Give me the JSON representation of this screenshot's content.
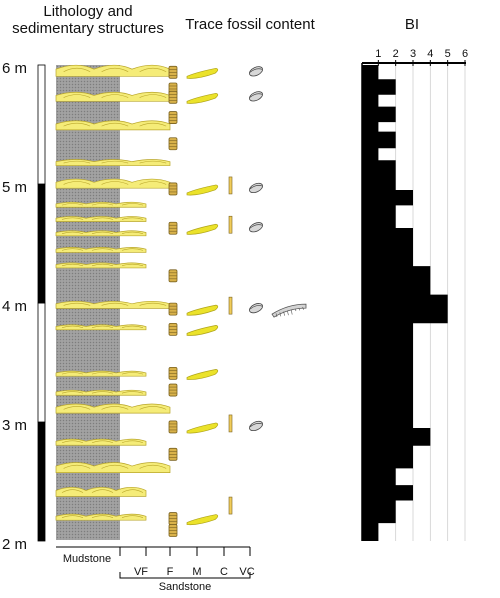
{
  "headers": {
    "lithology": [
      "Lithology and",
      "sedimentary structures"
    ],
    "trace": "Trace fossil content",
    "bi": "BI"
  },
  "depth": {
    "unit": "m",
    "labels": [
      "6 m",
      "5 m",
      "4 m",
      "3 m",
      "2 m"
    ],
    "range": [
      2,
      6
    ],
    "scale_bar": [
      {
        "from": 2,
        "to": 3,
        "fill": "black"
      },
      {
        "from": 3,
        "to": 4,
        "fill": "white"
      },
      {
        "from": 4,
        "to": 5,
        "fill": "black"
      },
      {
        "from": 5,
        "to": 6,
        "fill": "white"
      }
    ]
  },
  "grain_size": {
    "mudstone": "Mudstone",
    "classes": [
      "VF",
      "F",
      "M",
      "C",
      "VC"
    ],
    "sandstone": "Sandstone"
  },
  "sand_beds": [
    {
      "depth": 5.93,
      "grain": "F",
      "thick": 0.11
    },
    {
      "depth": 5.72,
      "grain": "F",
      "thick": 0.09
    },
    {
      "depth": 5.48,
      "grain": "F",
      "thick": 0.09
    },
    {
      "depth": 5.18,
      "grain": "F",
      "thick": 0.06
    },
    {
      "depth": 4.99,
      "grain": "F",
      "thick": 0.09
    },
    {
      "depth": 4.83,
      "grain": "VF",
      "thick": 0.05
    },
    {
      "depth": 4.71,
      "grain": "VF",
      "thick": 0.05
    },
    {
      "depth": 4.59,
      "grain": "VF",
      "thick": 0.05
    },
    {
      "depth": 4.45,
      "grain": "VF",
      "thick": 0.05
    },
    {
      "depth": 4.32,
      "grain": "VF",
      "thick": 0.05
    },
    {
      "depth": 3.98,
      "grain": "F",
      "thick": 0.07
    },
    {
      "depth": 3.8,
      "grain": "VF",
      "thick": 0.05
    },
    {
      "depth": 3.41,
      "grain": "VF",
      "thick": 0.05
    },
    {
      "depth": 3.25,
      "grain": "VF",
      "thick": 0.05
    },
    {
      "depth": 3.1,
      "grain": "F",
      "thick": 0.09
    },
    {
      "depth": 2.83,
      "grain": "VF",
      "thick": 0.06
    },
    {
      "depth": 2.6,
      "grain": "F",
      "thick": 0.1
    },
    {
      "depth": 2.4,
      "grain": "VF",
      "thick": 0.09
    },
    {
      "depth": 2.2,
      "grain": "VF",
      "thick": 0.06
    }
  ],
  "trace_fossils": [
    {
      "depth": 5.93,
      "types": [
        "vertical-burrow",
        "horizontal-burrow",
        "trail"
      ]
    },
    {
      "depth": 5.79,
      "types": [
        "vertical-burrow"
      ]
    },
    {
      "depth": 5.72,
      "types": [
        "vertical-burrow",
        "horizontal-burrow",
        "trail"
      ]
    },
    {
      "depth": 5.55,
      "types": [
        "vertical-burrow"
      ]
    },
    {
      "depth": 5.33,
      "types": [
        "vertical-burrow"
      ]
    },
    {
      "depth": 4.95,
      "types": [
        "vertical-burrow",
        "horizontal-burrow",
        "shaft",
        "trail"
      ]
    },
    {
      "depth": 4.62,
      "types": [
        "vertical-burrow",
        "horizontal-burrow",
        "shaft",
        "trail"
      ]
    },
    {
      "depth": 4.22,
      "types": [
        "vertical-burrow"
      ]
    },
    {
      "depth": 3.94,
      "types": [
        "vertical-burrow",
        "horizontal-burrow",
        "shaft",
        "trail",
        "segmented-burrow"
      ]
    },
    {
      "depth": 3.77,
      "types": [
        "vertical-burrow",
        "horizontal-burrow"
      ]
    },
    {
      "depth": 3.4,
      "types": [
        "vertical-burrow",
        "horizontal-burrow"
      ]
    },
    {
      "depth": 3.26,
      "types": [
        "vertical-burrow"
      ]
    },
    {
      "depth": 2.95,
      "types": [
        "vertical-burrow",
        "horizontal-burrow",
        "shaft",
        "trail"
      ]
    },
    {
      "depth": 2.72,
      "types": [
        "vertical-burrow"
      ]
    },
    {
      "depth": 2.26,
      "types": [
        "shaft"
      ]
    },
    {
      "depth": 2.18,
      "types": [
        "vertical-burrow",
        "horizontal-burrow"
      ]
    },
    {
      "depth": 2.08,
      "types": [
        "vertical-burrow"
      ]
    }
  ],
  "chart_data": {
    "type": "area",
    "orientation": "vertical-profile",
    "xlabel": "BI",
    "x_ticks": [
      "1",
      "2",
      "3",
      "4",
      "5",
      "6"
    ],
    "xlim": [
      0,
      6
    ],
    "ylim": [
      2,
      6
    ],
    "y_unit": "m",
    "grid": "vertical",
    "steps": [
      {
        "from": 6.0,
        "to": 5.88,
        "bi": 1
      },
      {
        "from": 5.88,
        "to": 5.75,
        "bi": 2
      },
      {
        "from": 5.75,
        "to": 5.65,
        "bi": 1
      },
      {
        "from": 5.65,
        "to": 5.52,
        "bi": 2
      },
      {
        "from": 5.52,
        "to": 5.44,
        "bi": 1
      },
      {
        "from": 5.44,
        "to": 5.3,
        "bi": 2
      },
      {
        "from": 5.3,
        "to": 5.2,
        "bi": 1
      },
      {
        "from": 5.2,
        "to": 4.95,
        "bi": 2
      },
      {
        "from": 4.95,
        "to": 4.82,
        "bi": 3
      },
      {
        "from": 4.82,
        "to": 4.63,
        "bi": 2
      },
      {
        "from": 4.63,
        "to": 4.31,
        "bi": 3
      },
      {
        "from": 4.31,
        "to": 4.07,
        "bi": 4
      },
      {
        "from": 4.07,
        "to": 3.83,
        "bi": 5
      },
      {
        "from": 3.83,
        "to": 2.95,
        "bi": 3
      },
      {
        "from": 2.95,
        "to": 2.8,
        "bi": 4
      },
      {
        "from": 2.8,
        "to": 2.61,
        "bi": 3
      },
      {
        "from": 2.61,
        "to": 2.47,
        "bi": 2
      },
      {
        "from": 2.47,
        "to": 2.34,
        "bi": 3
      },
      {
        "from": 2.34,
        "to": 2.15,
        "bi": 2
      },
      {
        "from": 2.15,
        "to": 2.0,
        "bi": 1
      }
    ]
  },
  "colors": {
    "sand": "#f5ec78",
    "sand_stroke": "#b9a62a",
    "mud": "#9a9a9a",
    "burrow": "#d9b24a",
    "burrow_stroke": "#7a6220",
    "trail": "#d8d8d8",
    "bi_fill": "#000000"
  }
}
